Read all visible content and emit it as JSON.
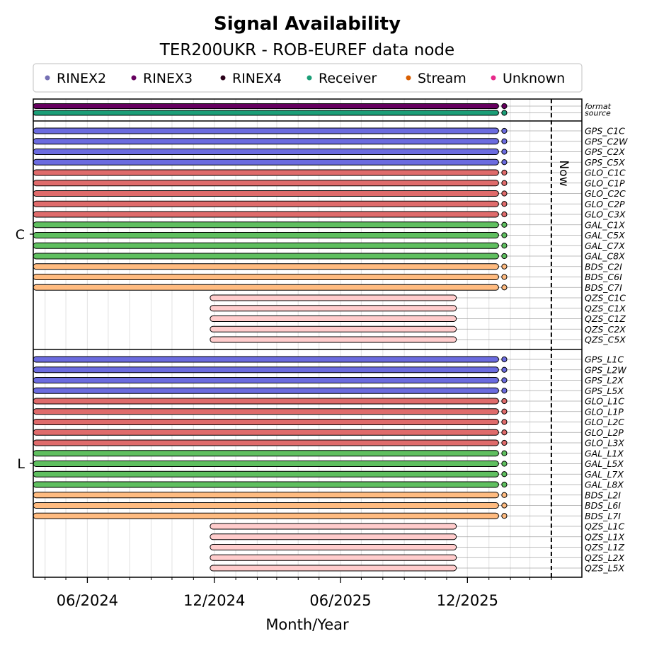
{
  "chart_data": {
    "type": "bar",
    "subtype": "timeline",
    "title": "Signal Availability",
    "subtitle": "TER200UKR - ROB-EUREF data node",
    "xlabel": "Month/Year",
    "x_ticks": [
      "06/2024",
      "12/2024",
      "06/2025",
      "12/2025"
    ],
    "now_label": "Now",
    "xlim": [
      "2024-03-15",
      "2026-05-15"
    ],
    "now_date": "2026-04-01",
    "legend": {
      "placement": "top",
      "items": [
        {
          "label": "RINEX2",
          "color": "#7570b3"
        },
        {
          "label": "RINEX3",
          "color": "#66005f"
        },
        {
          "label": "RINEX4",
          "color": "#2a0019"
        },
        {
          "label": "Receiver",
          "color": "#1b9e77"
        },
        {
          "label": "Stream",
          "color": "#d95f02"
        },
        {
          "label": "Unknown",
          "color": "#e7298a"
        }
      ]
    },
    "top_rows": [
      {
        "label": "format",
        "start": "2024-03-15",
        "end": "2026-01-15",
        "color": "#66005f"
      },
      {
        "label": "source",
        "start": "2024-03-15",
        "end": "2026-01-15",
        "color": "#1b9e77"
      }
    ],
    "groups": [
      {
        "name": "C",
        "signals": [
          {
            "label": "GPS_C1C",
            "start": "2024-03-15",
            "end": "2026-01-15",
            "color": "#6b6bdf"
          },
          {
            "label": "GPS_C2W",
            "start": "2024-03-15",
            "end": "2026-01-15",
            "color": "#6b6bdf"
          },
          {
            "label": "GPS_C2X",
            "start": "2024-03-15",
            "end": "2026-01-15",
            "color": "#6b6bdf"
          },
          {
            "label": "GPS_C5X",
            "start": "2024-03-15",
            "end": "2026-01-15",
            "color": "#6b6bdf"
          },
          {
            "label": "GLO_C1C",
            "start": "2024-03-15",
            "end": "2026-01-15",
            "color": "#df6b6b"
          },
          {
            "label": "GLO_C1P",
            "start": "2024-03-15",
            "end": "2026-01-15",
            "color": "#df6b6b"
          },
          {
            "label": "GLO_C2C",
            "start": "2024-03-15",
            "end": "2026-01-15",
            "color": "#df6b6b"
          },
          {
            "label": "GLO_C2P",
            "start": "2024-03-15",
            "end": "2026-01-15",
            "color": "#df6b6b"
          },
          {
            "label": "GLO_C3X",
            "start": "2024-03-15",
            "end": "2026-01-15",
            "color": "#df6b6b"
          },
          {
            "label": "GAL_C1X",
            "start": "2024-03-15",
            "end": "2026-01-15",
            "color": "#5fbf5f"
          },
          {
            "label": "GAL_C5X",
            "start": "2024-03-15",
            "end": "2026-01-15",
            "color": "#5fbf5f"
          },
          {
            "label": "GAL_C7X",
            "start": "2024-03-15",
            "end": "2026-01-15",
            "color": "#5fbf5f"
          },
          {
            "label": "GAL_C8X",
            "start": "2024-03-15",
            "end": "2026-01-15",
            "color": "#5fbf5f"
          },
          {
            "label": "BDS_C2I",
            "start": "2024-03-15",
            "end": "2026-01-15",
            "color": "#ffbb80"
          },
          {
            "label": "BDS_C6I",
            "start": "2024-03-15",
            "end": "2026-01-15",
            "color": "#ffbb80"
          },
          {
            "label": "BDS_C7I",
            "start": "2024-03-15",
            "end": "2026-01-15",
            "color": "#ffbb80"
          },
          {
            "label": "QZS_C1C",
            "start": "2024-11-25",
            "end": "2025-11-15",
            "color": "#ffcccc"
          },
          {
            "label": "QZS_C1X",
            "start": "2024-11-25",
            "end": "2025-11-15",
            "color": "#ffcccc"
          },
          {
            "label": "QZS_C1Z",
            "start": "2024-11-25",
            "end": "2025-11-15",
            "color": "#ffcccc"
          },
          {
            "label": "QZS_C2X",
            "start": "2024-11-25",
            "end": "2025-11-15",
            "color": "#ffcccc"
          },
          {
            "label": "QZS_C5X",
            "start": "2024-11-25",
            "end": "2025-11-15",
            "color": "#ffcccc"
          }
        ]
      },
      {
        "name": "L",
        "signals": [
          {
            "label": "GPS_L1C",
            "start": "2024-03-15",
            "end": "2026-01-15",
            "color": "#6b6bdf"
          },
          {
            "label": "GPS_L2W",
            "start": "2024-03-15",
            "end": "2026-01-15",
            "color": "#6b6bdf"
          },
          {
            "label": "GPS_L2X",
            "start": "2024-03-15",
            "end": "2026-01-15",
            "color": "#6b6bdf"
          },
          {
            "label": "GPS_L5X",
            "start": "2024-03-15",
            "end": "2026-01-15",
            "color": "#6b6bdf"
          },
          {
            "label": "GLO_L1C",
            "start": "2024-03-15",
            "end": "2026-01-15",
            "color": "#df6b6b"
          },
          {
            "label": "GLO_L1P",
            "start": "2024-03-15",
            "end": "2026-01-15",
            "color": "#df6b6b"
          },
          {
            "label": "GLO_L2C",
            "start": "2024-03-15",
            "end": "2026-01-15",
            "color": "#df6b6b"
          },
          {
            "label": "GLO_L2P",
            "start": "2024-03-15",
            "end": "2026-01-15",
            "color": "#df6b6b"
          },
          {
            "label": "GLO_L3X",
            "start": "2024-03-15",
            "end": "2026-01-15",
            "color": "#df6b6b"
          },
          {
            "label": "GAL_L1X",
            "start": "2024-03-15",
            "end": "2026-01-15",
            "color": "#5fbf5f"
          },
          {
            "label": "GAL_L5X",
            "start": "2024-03-15",
            "end": "2026-01-15",
            "color": "#5fbf5f"
          },
          {
            "label": "GAL_L7X",
            "start": "2024-03-15",
            "end": "2026-01-15",
            "color": "#5fbf5f"
          },
          {
            "label": "GAL_L8X",
            "start": "2024-03-15",
            "end": "2026-01-15",
            "color": "#5fbf5f"
          },
          {
            "label": "BDS_L2I",
            "start": "2024-03-15",
            "end": "2026-01-15",
            "color": "#ffbb80"
          },
          {
            "label": "BDS_L6I",
            "start": "2024-03-15",
            "end": "2026-01-15",
            "color": "#ffbb80"
          },
          {
            "label": "BDS_L7I",
            "start": "2024-03-15",
            "end": "2026-01-15",
            "color": "#ffbb80"
          },
          {
            "label": "QZS_L1C",
            "start": "2024-11-25",
            "end": "2025-11-15",
            "color": "#ffcccc"
          },
          {
            "label": "QZS_L1X",
            "start": "2024-11-25",
            "end": "2025-11-15",
            "color": "#ffcccc"
          },
          {
            "label": "QZS_L1Z",
            "start": "2024-11-25",
            "end": "2025-11-15",
            "color": "#ffcccc"
          },
          {
            "label": "QZS_L2X",
            "start": "2024-11-25",
            "end": "2025-11-15",
            "color": "#ffcccc"
          },
          {
            "label": "QZS_L5X",
            "start": "2024-11-25",
            "end": "2025-11-15",
            "color": "#ffcccc"
          }
        ]
      }
    ]
  }
}
